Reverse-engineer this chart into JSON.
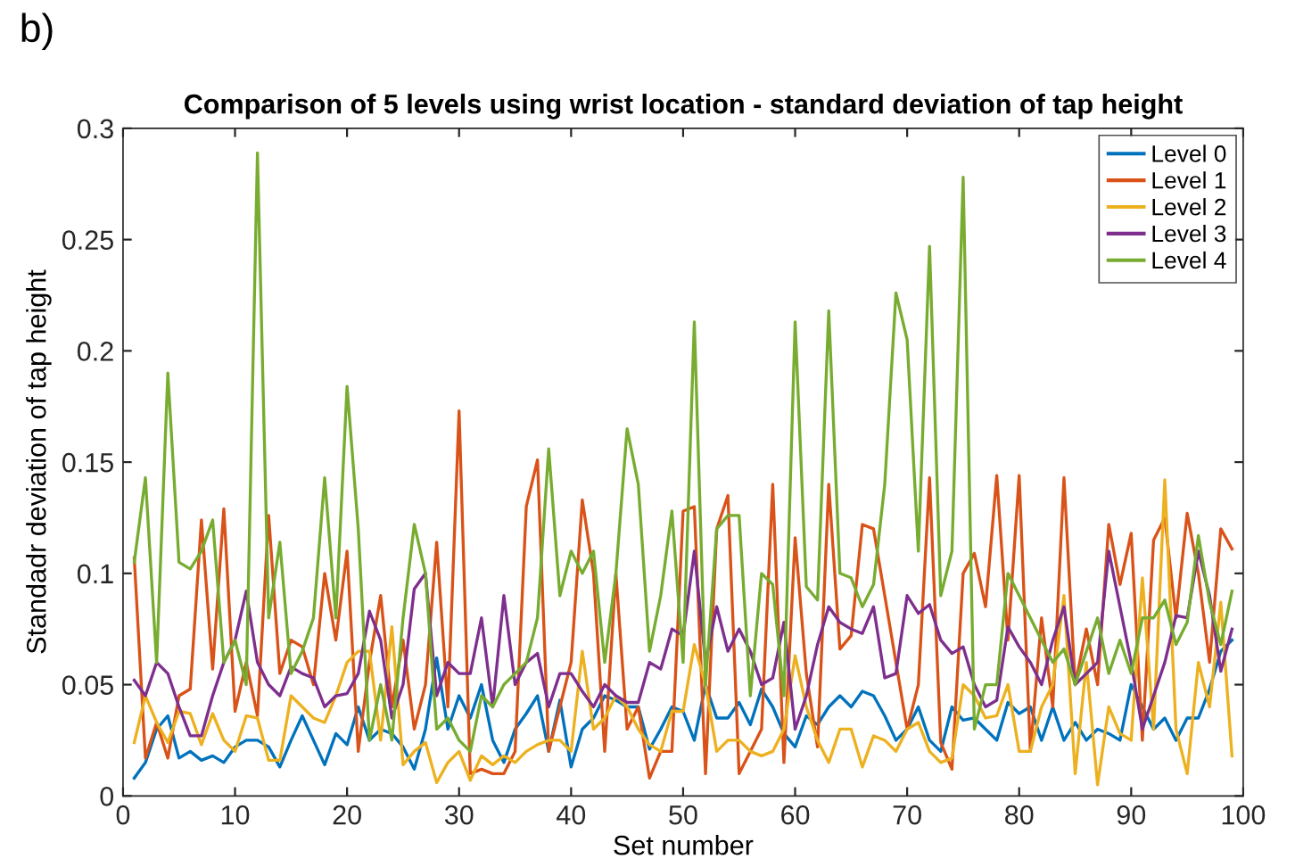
{
  "chart_data": {
    "type": "line",
    "title": "Comparison of 5 levels using wrist location - standard deviation of tap height",
    "xlabel": "Set number",
    "ylabel": "Standadr deviation of tap height",
    "annotations": [
      "b)"
    ],
    "x": [
      1,
      2,
      3,
      4,
      5,
      6,
      7,
      8,
      9,
      10,
      11,
      12,
      13,
      14,
      15,
      16,
      17,
      18,
      19,
      20,
      21,
      22,
      23,
      24,
      25,
      26,
      27,
      28,
      29,
      30,
      31,
      32,
      33,
      34,
      35,
      36,
      37,
      38,
      39,
      40,
      41,
      42,
      43,
      44,
      45,
      46,
      47,
      48,
      49,
      50,
      51,
      52,
      53,
      54,
      55,
      56,
      57,
      58,
      59,
      60,
      61,
      62,
      63,
      64,
      65,
      66,
      67,
      68,
      69,
      70,
      71,
      72,
      73,
      74,
      75,
      76,
      77,
      78,
      79,
      80,
      81,
      82,
      83,
      84,
      85,
      86,
      87,
      88,
      89,
      90,
      91,
      92,
      93,
      94,
      95,
      96,
      97,
      98,
      99
    ],
    "xlim": [
      0,
      100
    ],
    "xticks": [
      0,
      10,
      20,
      30,
      40,
      50,
      60,
      70,
      80,
      90,
      100
    ],
    "ylim": [
      0,
      0.3
    ],
    "yticks": [
      0,
      0.05,
      0.1,
      0.15,
      0.2,
      0.25,
      0.3
    ],
    "grid": false,
    "legend": "top right",
    "line_style": "solid",
    "marker": "none",
    "series": [
      {
        "name": "Level 0",
        "color": "#0072bd",
        "values": [
          0.008,
          0.015,
          0.03,
          0.036,
          0.017,
          0.02,
          0.016,
          0.018,
          0.015,
          0.022,
          0.025,
          0.025,
          0.022,
          0.013,
          0.025,
          0.036,
          0.025,
          0.014,
          0.028,
          0.023,
          0.04,
          0.025,
          0.03,
          0.028,
          0.022,
          0.012,
          0.03,
          0.062,
          0.03,
          0.045,
          0.035,
          0.05,
          0.025,
          0.015,
          0.03,
          0.037,
          0.045,
          0.02,
          0.043,
          0.013,
          0.03,
          0.035,
          0.045,
          0.043,
          0.04,
          0.04,
          0.021,
          0.03,
          0.04,
          0.038,
          0.025,
          0.05,
          0.035,
          0.035,
          0.042,
          0.032,
          0.048,
          0.04,
          0.028,
          0.022,
          0.036,
          0.032,
          0.04,
          0.045,
          0.04,
          0.047,
          0.045,
          0.036,
          0.025,
          0.03,
          0.04,
          0.025,
          0.02,
          0.04,
          0.034,
          0.035,
          0.03,
          0.025,
          0.042,
          0.037,
          0.04,
          0.025,
          0.04,
          0.025,
          0.033,
          0.025,
          0.03,
          0.028,
          0.025,
          0.05,
          0.04,
          0.03,
          0.035,
          0.025,
          0.035,
          0.035,
          0.048,
          0.065,
          0.07
        ]
      },
      {
        "name": "Level 1",
        "color": "#d95319",
        "values": [
          0.107,
          0.017,
          0.033,
          0.017,
          0.045,
          0.048,
          0.124,
          0.057,
          0.129,
          0.038,
          0.06,
          0.036,
          0.126,
          0.055,
          0.07,
          0.067,
          0.05,
          0.1,
          0.07,
          0.11,
          0.02,
          0.06,
          0.09,
          0.04,
          0.07,
          0.03,
          0.05,
          0.114,
          0.04,
          0.173,
          0.01,
          0.012,
          0.01,
          0.01,
          0.02,
          0.13,
          0.151,
          0.02,
          0.04,
          0.06,
          0.133,
          0.1,
          0.02,
          0.1,
          0.03,
          0.04,
          0.008,
          0.02,
          0.02,
          0.128,
          0.13,
          0.01,
          0.12,
          0.135,
          0.01,
          0.02,
          0.03,
          0.14,
          0.015,
          0.116,
          0.055,
          0.022,
          0.14,
          0.066,
          0.072,
          0.122,
          0.12,
          0.09,
          0.06,
          0.03,
          0.05,
          0.143,
          0.024,
          0.012,
          0.1,
          0.109,
          0.085,
          0.144,
          0.07,
          0.144,
          0.02,
          0.08,
          0.04,
          0.143,
          0.05,
          0.075,
          0.05,
          0.122,
          0.095,
          0.118,
          0.025,
          0.115,
          0.125,
          0.08,
          0.127,
          0.1,
          0.06,
          0.12,
          0.111
        ]
      },
      {
        "name": "Level 2",
        "color": "#edb120",
        "values": [
          0.024,
          0.045,
          0.033,
          0.024,
          0.038,
          0.037,
          0.023,
          0.037,
          0.025,
          0.02,
          0.036,
          0.035,
          0.016,
          0.016,
          0.045,
          0.04,
          0.035,
          0.033,
          0.045,
          0.06,
          0.065,
          0.065,
          0.025,
          0.076,
          0.014,
          0.02,
          0.024,
          0.006,
          0.015,
          0.02,
          0.007,
          0.018,
          0.014,
          0.018,
          0.015,
          0.02,
          0.023,
          0.025,
          0.025,
          0.02,
          0.065,
          0.03,
          0.035,
          0.045,
          0.04,
          0.03,
          0.023,
          0.02,
          0.038,
          0.038,
          0.068,
          0.05,
          0.02,
          0.025,
          0.025,
          0.02,
          0.018,
          0.02,
          0.03,
          0.063,
          0.04,
          0.025,
          0.015,
          0.03,
          0.03,
          0.013,
          0.027,
          0.025,
          0.02,
          0.03,
          0.033,
          0.02,
          0.015,
          0.017,
          0.05,
          0.045,
          0.035,
          0.036,
          0.05,
          0.02,
          0.02,
          0.04,
          0.05,
          0.09,
          0.01,
          0.06,
          0.005,
          0.04,
          0.028,
          0.025,
          0.098,
          0.03,
          0.142,
          0.03,
          0.01,
          0.06,
          0.04,
          0.087,
          0.018
        ]
      },
      {
        "name": "Level 3",
        "color": "#7e2f8e",
        "values": [
          0.052,
          0.045,
          0.06,
          0.055,
          0.04,
          0.027,
          0.027,
          0.045,
          0.06,
          0.07,
          0.092,
          0.06,
          0.05,
          0.045,
          0.058,
          0.055,
          0.053,
          0.04,
          0.045,
          0.046,
          0.055,
          0.083,
          0.07,
          0.035,
          0.05,
          0.093,
          0.1,
          0.045,
          0.06,
          0.055,
          0.055,
          0.08,
          0.04,
          0.09,
          0.05,
          0.06,
          0.064,
          0.04,
          0.055,
          0.055,
          0.047,
          0.04,
          0.05,
          0.045,
          0.042,
          0.042,
          0.06,
          0.057,
          0.075,
          0.072,
          0.11,
          0.06,
          0.085,
          0.065,
          0.075,
          0.065,
          0.05,
          0.053,
          0.078,
          0.03,
          0.045,
          0.068,
          0.085,
          0.078,
          0.075,
          0.073,
          0.085,
          0.053,
          0.055,
          0.09,
          0.082,
          0.086,
          0.07,
          0.064,
          0.067,
          0.05,
          0.04,
          0.043,
          0.076,
          0.067,
          0.06,
          0.05,
          0.07,
          0.085,
          0.05,
          0.055,
          0.06,
          0.11,
          0.085,
          0.06,
          0.03,
          0.045,
          0.06,
          0.081,
          0.08,
          0.11,
          0.09,
          0.056,
          0.075
        ]
      },
      {
        "name": "Level 4",
        "color": "#77ac30",
        "values": [
          0.105,
          0.143,
          0.06,
          0.19,
          0.105,
          0.102,
          0.11,
          0.124,
          0.06,
          0.07,
          0.05,
          0.289,
          0.08,
          0.114,
          0.055,
          0.065,
          0.08,
          0.143,
          0.08,
          0.184,
          0.12,
          0.025,
          0.05,
          0.025,
          0.08,
          0.122,
          0.1,
          0.03,
          0.035,
          0.025,
          0.02,
          0.045,
          0.04,
          0.05,
          0.055,
          0.06,
          0.08,
          0.156,
          0.09,
          0.11,
          0.1,
          0.11,
          0.06,
          0.1,
          0.165,
          0.14,
          0.065,
          0.09,
          0.128,
          0.06,
          0.213,
          0.05,
          0.12,
          0.126,
          0.126,
          0.045,
          0.1,
          0.095,
          0.045,
          0.213,
          0.094,
          0.088,
          0.218,
          0.1,
          0.098,
          0.085,
          0.095,
          0.14,
          0.226,
          0.205,
          0.11,
          0.247,
          0.09,
          0.11,
          0.278,
          0.03,
          0.05,
          0.05,
          0.1,
          0.09,
          0.08,
          0.07,
          0.06,
          0.066,
          0.05,
          0.065,
          0.08,
          0.055,
          0.07,
          0.055,
          0.08,
          0.08,
          0.088,
          0.068,
          0.078,
          0.117,
          0.087,
          0.068,
          0.092
        ]
      }
    ]
  }
}
